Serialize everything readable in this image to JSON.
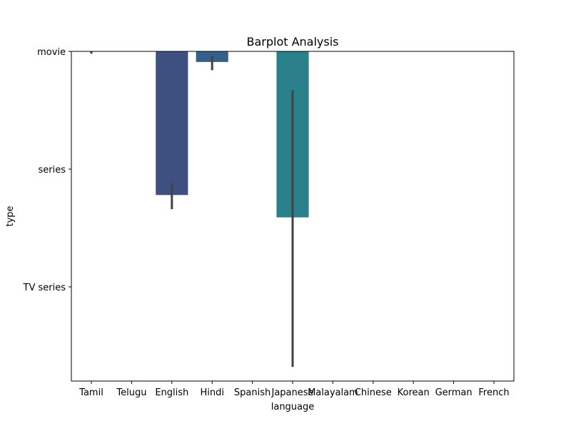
{
  "chart_data": {
    "type": "bar",
    "title": "Barplot Analysis",
    "xlabel": "language",
    "ylabel": "type",
    "categories": [
      "Tamil",
      "Telugu",
      "English",
      "Hindi",
      "Spanish",
      "Japanese",
      "Malayalam",
      "Chinese",
      "Korean",
      "German",
      "French"
    ],
    "y_tick_labels": [
      "movie",
      "series",
      "TV series"
    ],
    "y_tick_values": [
      0,
      1,
      2
    ],
    "ylim": [
      2.8,
      0
    ],
    "values": [
      0,
      0,
      1.22,
      0.09,
      0,
      1.41,
      0,
      0,
      0,
      0,
      0
    ],
    "error_low": [
      0,
      0,
      1.12,
      0.04,
      0,
      0.33,
      0,
      0,
      0,
      0,
      0
    ],
    "error_high": [
      0.02,
      0,
      1.34,
      0.16,
      0,
      2.68,
      0,
      0,
      0,
      0,
      0
    ],
    "bar_colors": [
      "#4a2f7a",
      "#483c7c",
      "#3e5080",
      "#34618a",
      "#2d6f8e",
      "#2a818c",
      "#269188",
      "#2ba07e",
      "#3dad74",
      "#55b863",
      "#76c24b"
    ],
    "errorbar_color": "#424242",
    "grid": false,
    "legend": "none"
  }
}
